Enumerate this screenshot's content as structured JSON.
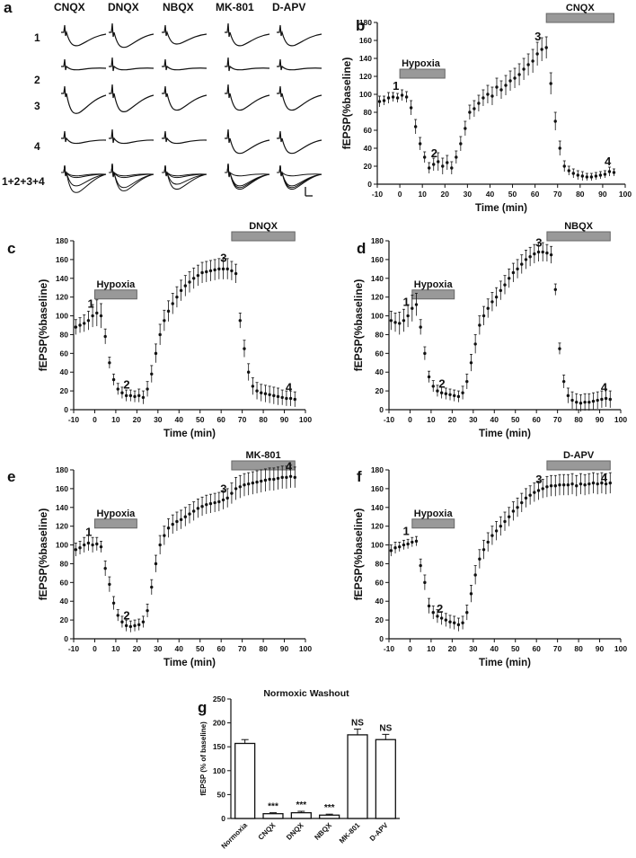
{
  "colors": {
    "ink": "#111111",
    "bar_fill": "#999999",
    "bar_stroke": "#666666",
    "background": "#ffffff"
  },
  "panel_a": {
    "label": "a",
    "columns": [
      "CNQX",
      "DNQX",
      "NBQX",
      "MK-801",
      "D-APV"
    ],
    "rows": [
      "1",
      "2",
      "3",
      "4",
      "1+2+3+4"
    ]
  },
  "chart_data": [
    {
      "id": "b",
      "type": "scatter",
      "panel_label": "b",
      "drug_bar": "CNQX",
      "hypoxia_bar": "Hypoxia",
      "xlabel": "Time (min)",
      "ylabel": "fEPSP(%baseline)",
      "xlim": [
        -10,
        100
      ],
      "ylim": [
        0,
        180
      ],
      "xticks": [
        "-10",
        "0",
        "10",
        "20",
        "30",
        "40",
        "50",
        "60",
        "70",
        "80",
        "90",
        "100"
      ],
      "yticks": [
        "0",
        "20",
        "40",
        "60",
        "80",
        "100",
        "120",
        "140",
        "160",
        "180"
      ],
      "hypoxia_range": [
        0,
        20
      ],
      "drug_range": [
        65,
        95
      ],
      "time_points": [
        {
          "label": "1",
          "x": 0,
          "y": 97
        },
        {
          "label": "2",
          "x": 17,
          "y": 22
        },
        {
          "label": "3",
          "x": 63,
          "y": 152
        },
        {
          "label": "4",
          "x": 94,
          "y": 13
        }
      ],
      "x": [
        -9,
        -7,
        -5,
        -3,
        -1,
        1,
        3,
        5,
        7,
        9,
        11,
        13,
        15,
        17,
        19,
        21,
        23,
        25,
        27,
        29,
        31,
        33,
        35,
        37,
        39,
        41,
        43,
        45,
        47,
        49,
        51,
        53,
        55,
        57,
        59,
        61,
        63,
        65,
        67,
        69,
        71,
        73,
        75,
        77,
        79,
        81,
        83,
        85,
        87,
        89,
        91,
        93,
        95
      ],
      "values": [
        92,
        93,
        96,
        97,
        96,
        99,
        97,
        85,
        64,
        45,
        30,
        18,
        22,
        25,
        20,
        24,
        18,
        30,
        45,
        62,
        80,
        84,
        90,
        96,
        100,
        98,
        108,
        105,
        110,
        115,
        118,
        122,
        128,
        133,
        137,
        145,
        150,
        152,
        112,
        70,
        40,
        20,
        15,
        12,
        10,
        9,
        8,
        8,
        9,
        10,
        11,
        14,
        13
      ],
      "errors": [
        6,
        5,
        6,
        5,
        5,
        6,
        6,
        8,
        8,
        7,
        6,
        6,
        7,
        10,
        9,
        8,
        7,
        7,
        8,
        8,
        8,
        9,
        9,
        9,
        10,
        10,
        10,
        10,
        11,
        11,
        11,
        12,
        12,
        12,
        13,
        13,
        13,
        12,
        12,
        10,
        8,
        6,
        5,
        5,
        5,
        5,
        4,
        4,
        4,
        4,
        4,
        5,
        4
      ]
    },
    {
      "id": "c",
      "type": "scatter",
      "panel_label": "c",
      "drug_bar": "DNQX",
      "hypoxia_bar": "Hypoxia",
      "xlabel": "Time (min)",
      "ylabel": "fEPSP(%baseline)",
      "xlim": [
        -10,
        100
      ],
      "ylim": [
        0,
        180
      ],
      "xticks": [
        "-10",
        "0",
        "10",
        "20",
        "30",
        "40",
        "50",
        "60",
        "70",
        "80",
        "90",
        "100"
      ],
      "yticks": [
        "0",
        "20",
        "40",
        "60",
        "80",
        "100",
        "120",
        "140",
        "160",
        "180"
      ],
      "hypoxia_range": [
        0,
        20
      ],
      "drug_range": [
        65,
        95
      ],
      "time_points": [
        {
          "label": "1",
          "x": 0,
          "y": 101
        },
        {
          "label": "2",
          "x": 17,
          "y": 15
        },
        {
          "label": "3",
          "x": 63,
          "y": 150
        },
        {
          "label": "4",
          "x": 94,
          "y": 12
        }
      ],
      "x": [
        -9,
        -7,
        -5,
        -3,
        -1,
        1,
        3,
        5,
        7,
        9,
        11,
        13,
        15,
        17,
        19,
        21,
        23,
        25,
        27,
        29,
        31,
        33,
        35,
        37,
        39,
        41,
        43,
        45,
        47,
        49,
        51,
        53,
        55,
        57,
        59,
        61,
        63,
        65,
        67,
        69,
        71,
        73,
        75,
        77,
        79,
        81,
        83,
        85,
        87,
        89,
        91,
        93,
        95
      ],
      "values": [
        88,
        90,
        92,
        95,
        100,
        103,
        100,
        78,
        50,
        32,
        22,
        18,
        15,
        15,
        14,
        15,
        13,
        22,
        38,
        60,
        80,
        95,
        105,
        113,
        120,
        127,
        132,
        136,
        140,
        143,
        146,
        147,
        148,
        149,
        150,
        150,
        150,
        148,
        145,
        95,
        65,
        40,
        25,
        20,
        18,
        17,
        16,
        15,
        14,
        13,
        12,
        12,
        11
      ],
      "errors": [
        8,
        8,
        9,
        10,
        12,
        14,
        13,
        8,
        6,
        6,
        6,
        6,
        6,
        6,
        6,
        7,
        7,
        8,
        9,
        10,
        11,
        11,
        11,
        11,
        11,
        11,
        11,
        11,
        11,
        11,
        11,
        11,
        11,
        11,
        11,
        11,
        11,
        10,
        10,
        8,
        9,
        9,
        9,
        9,
        9,
        9,
        9,
        9,
        9,
        8,
        8,
        8,
        8
      ]
    },
    {
      "id": "d",
      "type": "scatter",
      "panel_label": "d",
      "drug_bar": "NBQX",
      "hypoxia_bar": "Hypoxia",
      "xlabel": "Time (min)",
      "ylabel": "fEPSP(%baseline)",
      "xlim": [
        -10,
        100
      ],
      "ylim": [
        0,
        180
      ],
      "xticks": [
        "-10",
        "0",
        "10",
        "20",
        "30",
        "40",
        "50",
        "60",
        "70",
        "80",
        "90",
        "100"
      ],
      "yticks": [
        "0",
        "20",
        "40",
        "60",
        "80",
        "100",
        "120",
        "140",
        "160",
        "180"
      ],
      "hypoxia_range": [
        1,
        21
      ],
      "drug_range": [
        65,
        95
      ],
      "time_points": [
        {
          "label": "1",
          "x": 0,
          "y": 103
        },
        {
          "label": "2",
          "x": 17,
          "y": 16
        },
        {
          "label": "3",
          "x": 63,
          "y": 166
        },
        {
          "label": "4",
          "x": 94,
          "y": 12
        }
      ],
      "x": [
        -9,
        -7,
        -5,
        -3,
        -1,
        1,
        3,
        5,
        7,
        9,
        11,
        13,
        15,
        17,
        19,
        21,
        23,
        25,
        27,
        29,
        31,
        33,
        35,
        37,
        39,
        41,
        43,
        45,
        47,
        49,
        51,
        53,
        55,
        57,
        59,
        61,
        63,
        65,
        67,
        69,
        71,
        73,
        75,
        77,
        79,
        81,
        83,
        85,
        87,
        89,
        91,
        93,
        95
      ],
      "values": [
        95,
        93,
        92,
        95,
        100,
        108,
        112,
        88,
        60,
        35,
        25,
        20,
        18,
        17,
        16,
        15,
        14,
        18,
        30,
        50,
        70,
        90,
        100,
        108,
        115,
        120,
        127,
        133,
        140,
        146,
        150,
        155,
        160,
        163,
        166,
        168,
        168,
        167,
        165,
        128,
        65,
        30,
        15,
        10,
        8,
        7,
        8,
        8,
        9,
        10,
        11,
        12,
        11
      ],
      "errors": [
        10,
        10,
        12,
        12,
        12,
        14,
        12,
        8,
        7,
        6,
        6,
        6,
        6,
        6,
        6,
        6,
        6,
        7,
        8,
        9,
        10,
        10,
        10,
        10,
        10,
        10,
        10,
        10,
        10,
        10,
        10,
        10,
        10,
        10,
        10,
        10,
        10,
        9,
        9,
        6,
        6,
        7,
        8,
        9,
        9,
        9,
        9,
        9,
        9,
        9,
        9,
        9,
        9
      ]
    },
    {
      "id": "e",
      "type": "scatter",
      "panel_label": "e",
      "drug_bar": "MK-801",
      "hypoxia_bar": "Hypoxia",
      "xlabel": "Time (min)",
      "ylabel": "fEPSP(%baseline)",
      "xlim": [
        -10,
        100
      ],
      "ylim": [
        0,
        180
      ],
      "xticks": [
        "-10",
        "0",
        "10",
        "20",
        "30",
        "40",
        "50",
        "60",
        "70",
        "80",
        "90",
        "100"
      ],
      "yticks": [
        "0",
        "20",
        "40",
        "60",
        "80",
        "100",
        "120",
        "140",
        "160",
        "180"
      ],
      "hypoxia_range": [
        0,
        20
      ],
      "drug_range": [
        65,
        95
      ],
      "time_points": [
        {
          "label": "1",
          "x": -1,
          "y": 102
        },
        {
          "label": "2",
          "x": 17,
          "y": 13
        },
        {
          "label": "3",
          "x": 63,
          "y": 148
        },
        {
          "label": "4",
          "x": 94,
          "y": 172
        }
      ],
      "x": [
        -9,
        -7,
        -5,
        -3,
        -1,
        1,
        3,
        5,
        7,
        9,
        11,
        13,
        15,
        17,
        19,
        21,
        23,
        25,
        27,
        29,
        31,
        33,
        35,
        37,
        39,
        41,
        43,
        45,
        47,
        49,
        51,
        53,
        55,
        57,
        59,
        61,
        63,
        65,
        67,
        69,
        71,
        73,
        75,
        77,
        79,
        81,
        83,
        85,
        87,
        89,
        91,
        93,
        95
      ],
      "values": [
        95,
        97,
        100,
        102,
        100,
        101,
        98,
        75,
        58,
        38,
        25,
        18,
        14,
        13,
        14,
        15,
        18,
        30,
        55,
        80,
        100,
        110,
        118,
        122,
        125,
        127,
        130,
        133,
        136,
        139,
        141,
        143,
        144,
        145,
        146,
        148,
        150,
        155,
        160,
        162,
        164,
        165,
        166,
        167,
        168,
        169,
        170,
        170,
        171,
        172,
        172,
        173,
        172
      ],
      "errors": [
        7,
        7,
        8,
        8,
        8,
        7,
        6,
        8,
        8,
        7,
        6,
        6,
        6,
        6,
        6,
        6,
        6,
        7,
        8,
        9,
        10,
        10,
        10,
        10,
        10,
        10,
        10,
        10,
        10,
        10,
        10,
        10,
        10,
        10,
        10,
        10,
        10,
        11,
        12,
        12,
        12,
        12,
        12,
        12,
        12,
        12,
        12,
        12,
        12,
        12,
        12,
        12,
        11
      ]
    },
    {
      "id": "f",
      "type": "scatter",
      "panel_label": "f",
      "drug_bar": "D-APV",
      "hypoxia_bar": "Hypoxia",
      "xlabel": "Time (min)",
      "ylabel": "fEPSP(%baseline)",
      "xlim": [
        -10,
        100
      ],
      "ylim": [
        0,
        180
      ],
      "xticks": [
        "-10",
        "0",
        "10",
        "20",
        "30",
        "40",
        "50",
        "60",
        "70",
        "80",
        "90",
        "100"
      ],
      "yticks": [
        "0",
        "20",
        "40",
        "60",
        "80",
        "100",
        "120",
        "140",
        "160",
        "180"
      ],
      "hypoxia_range": [
        1,
        21
      ],
      "drug_range": [
        65,
        95
      ],
      "time_points": [
        {
          "label": "1",
          "x": 0,
          "y": 103
        },
        {
          "label": "2",
          "x": 16,
          "y": 20
        },
        {
          "label": "3",
          "x": 63,
          "y": 158
        },
        {
          "label": "4",
          "x": 94,
          "y": 160
        }
      ],
      "x": [
        -9,
        -7,
        -5,
        -3,
        -1,
        1,
        3,
        5,
        7,
        9,
        11,
        13,
        15,
        17,
        19,
        21,
        23,
        25,
        27,
        29,
        31,
        33,
        35,
        37,
        39,
        41,
        43,
        45,
        47,
        49,
        51,
        53,
        55,
        57,
        59,
        61,
        63,
        65,
        67,
        69,
        71,
        73,
        75,
        77,
        79,
        81,
        83,
        85,
        87,
        89,
        91,
        93,
        95
      ],
      "values": [
        94,
        97,
        98,
        100,
        101,
        103,
        104,
        78,
        60,
        35,
        28,
        24,
        22,
        20,
        18,
        17,
        15,
        17,
        28,
        48,
        68,
        85,
        95,
        103,
        110,
        115,
        120,
        125,
        130,
        136,
        140,
        145,
        150,
        153,
        156,
        158,
        160,
        162,
        163,
        163,
        164,
        164,
        164,
        165,
        163,
        165,
        164,
        165,
        166,
        165,
        166,
        165,
        166
      ],
      "errors": [
        6,
        6,
        5,
        5,
        5,
        5,
        5,
        7,
        8,
        8,
        7,
        7,
        7,
        7,
        7,
        7,
        7,
        7,
        8,
        9,
        10,
        10,
        10,
        10,
        10,
        10,
        10,
        10,
        10,
        10,
        10,
        10,
        10,
        10,
        10,
        10,
        10,
        11,
        11,
        11,
        11,
        11,
        11,
        11,
        11,
        11,
        11,
        11,
        11,
        11,
        11,
        11,
        11
      ]
    },
    {
      "id": "g",
      "type": "bar",
      "panel_label": "g",
      "title": "Normoxic Washout",
      "ylabel": "fEPSP (% of baseline)",
      "categories": [
        "Normoxia",
        "CNQX",
        "DNQX",
        "NBQX",
        "MK-801",
        "D-APV"
      ],
      "values": [
        157,
        10,
        12,
        7,
        175,
        165
      ],
      "errors": [
        8,
        2,
        3,
        2,
        12,
        11
      ],
      "significance": [
        "",
        "***",
        "***",
        "***",
        "NS",
        "NS"
      ],
      "ylim": [
        0,
        250
      ],
      "yticks": [
        "0",
        "50",
        "100",
        "150",
        "200",
        "250"
      ]
    }
  ]
}
